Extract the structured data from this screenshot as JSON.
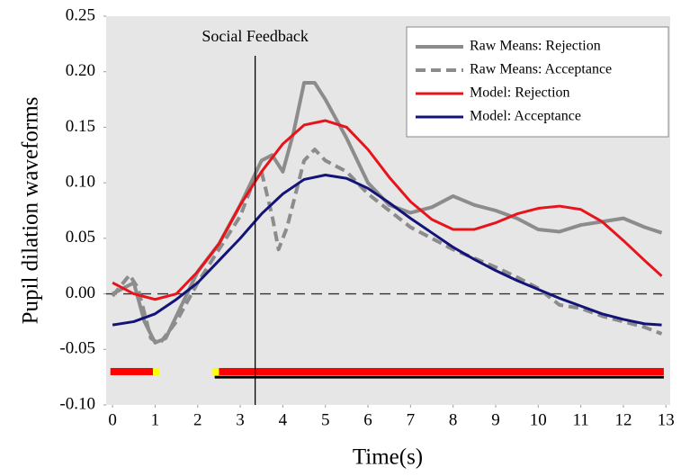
{
  "chart_data": {
    "type": "line",
    "y_label": "Pupil dilation waveforms",
    "x_label": "Time(s)",
    "annotation": {
      "text": "Social Feedback",
      "x": 3.35
    },
    "hline": 0,
    "xlim": [
      -0.15,
      13.1
    ],
    "ylim": [
      -0.1,
      0.25
    ],
    "xticks": [
      0,
      1,
      2,
      3,
      4,
      5,
      6,
      7,
      8,
      9,
      10,
      11,
      12,
      13
    ],
    "yticks": [
      {
        "value": 0.25,
        "label": "0.25"
      },
      {
        "value": 0.2,
        "label": "0.20"
      },
      {
        "value": 0.15,
        "label": "0.15"
      },
      {
        "value": 0.1,
        "label": "0.10"
      },
      {
        "value": 0.05,
        "label": "0.05"
      },
      {
        "value": 0,
        "label": "0.00"
      },
      {
        "value": -0.05,
        "label": "-0.05"
      },
      {
        "value": -0.1,
        "label": "-0.10"
      }
    ],
    "series": [
      {
        "name": "Raw Means: Rejection",
        "color": "#8c8c8c",
        "dash": false,
        "width": 4,
        "x": [
          0,
          0.25,
          0.5,
          0.75,
          1,
          1.25,
          1.5,
          2,
          2.5,
          3,
          3.5,
          3.75,
          4,
          4.25,
          4.5,
          4.75,
          5,
          5.5,
          6,
          6.5,
          7,
          7.5,
          8,
          8.5,
          9,
          9.5,
          10,
          10.5,
          11,
          11.5,
          12,
          12.5,
          12.9
        ],
        "values": [
          0,
          0.005,
          0.01,
          -0.025,
          -0.044,
          -0.04,
          -0.02,
          0.02,
          0.045,
          0.08,
          0.12,
          0.125,
          0.11,
          0.145,
          0.19,
          0.19,
          0.175,
          0.14,
          0.1,
          0.08,
          0.073,
          0.078,
          0.088,
          0.08,
          0.075,
          0.068,
          0.058,
          0.056,
          0.062,
          0.065,
          0.068,
          0.06,
          0.055
        ]
      },
      {
        "name": "Raw Means: Acceptance",
        "color": "#8c8c8c",
        "dash": true,
        "width": 4,
        "x": [
          0,
          0.4,
          0.6,
          0.9,
          1.1,
          1.5,
          2,
          2.5,
          3,
          3.3,
          3.5,
          3.75,
          3.9,
          4.1,
          4.5,
          4.75,
          5,
          5.5,
          6,
          6.5,
          7,
          7.5,
          8,
          8.5,
          9,
          9.5,
          10,
          10.5,
          11,
          11.5,
          12,
          12.5,
          12.9
        ],
        "values": [
          -0.002,
          0.017,
          0.005,
          -0.04,
          -0.045,
          -0.025,
          0.01,
          0.04,
          0.07,
          0.1,
          0.11,
          0.07,
          0.04,
          0.06,
          0.12,
          0.13,
          0.12,
          0.11,
          0.09,
          0.075,
          0.06,
          0.05,
          0.04,
          0.032,
          0.024,
          0.015,
          0.005,
          -0.01,
          -0.013,
          -0.02,
          -0.025,
          -0.03,
          -0.036
        ]
      },
      {
        "name": "Model: Rejection",
        "color": "#e8141b",
        "dash": false,
        "width": 3,
        "x": [
          0,
          0.5,
          1,
          1.5,
          2,
          2.5,
          3,
          3.5,
          4,
          4.5,
          5,
          5.5,
          6,
          6.5,
          7,
          7.5,
          8,
          8.5,
          9,
          9.5,
          10,
          10.5,
          11,
          11.5,
          12,
          12.5,
          12.9
        ],
        "values": [
          0.01,
          0,
          -0.005,
          0,
          0.02,
          0.045,
          0.08,
          0.11,
          0.135,
          0.152,
          0.156,
          0.15,
          0.13,
          0.105,
          0.083,
          0.067,
          0.058,
          0.058,
          0.064,
          0.072,
          0.077,
          0.079,
          0.076,
          0.065,
          0.048,
          0.03,
          0.016
        ]
      },
      {
        "name": "Model: Acceptance",
        "color": "#141478",
        "dash": false,
        "width": 3,
        "x": [
          0,
          0.5,
          1,
          1.5,
          2,
          2.5,
          3,
          3.5,
          4,
          4.5,
          5,
          5.5,
          6,
          6.5,
          7,
          7.5,
          8,
          8.5,
          9,
          9.5,
          10,
          10.5,
          11,
          11.5,
          12,
          12.5,
          12.9
        ],
        "values": [
          -0.028,
          -0.025,
          -0.018,
          -0.005,
          0.01,
          0.03,
          0.05,
          0.072,
          0.09,
          0.103,
          0.107,
          0.104,
          0.095,
          0.082,
          0.068,
          0.055,
          0.042,
          0.031,
          0.021,
          0.012,
          0.004,
          -0.004,
          -0.011,
          -0.018,
          -0.023,
          -0.027,
          -0.028
        ]
      }
    ],
    "markers": [
      {
        "color": "#ff0000",
        "x": [
          -0.05,
          0.95
        ],
        "y": -0.07,
        "thick": 8
      },
      {
        "color": "#ffff00",
        "x": [
          0.95,
          1.1
        ],
        "y": -0.07,
        "thick": 8
      },
      {
        "color": "#ffff00",
        "x": [
          2.35,
          2.5
        ],
        "y": -0.07,
        "thick": 8
      },
      {
        "color": "#ff0000",
        "x": [
          2.5,
          12.95
        ],
        "y": -0.07,
        "thick": 8
      },
      {
        "color": "#000000",
        "x": [
          2.4,
          12.95
        ],
        "y": -0.075,
        "thick": 3
      }
    ]
  }
}
